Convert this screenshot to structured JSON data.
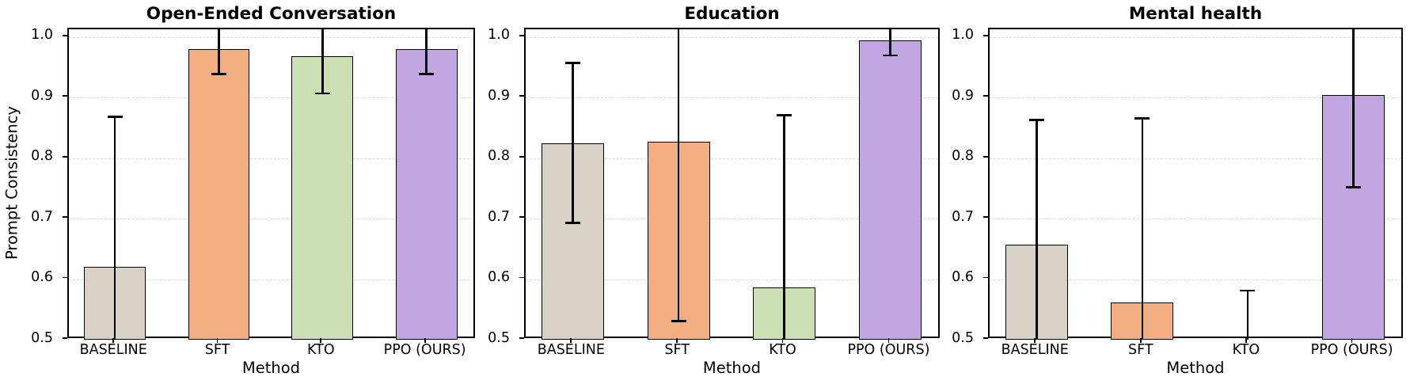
{
  "figure": {
    "ylabel": "Prompt Consistency",
    "background": "#ffffff"
  },
  "style": {
    "bar_colors": [
      "#D8D1C5",
      "#F2AE80",
      "#CBDFB2",
      "#C1A6E2"
    ],
    "bar_edge_color": "#000000",
    "error_color": "#000000",
    "grid_color": "#d8d8d8",
    "frame_color": "#000000",
    "text_color": "#000000"
  },
  "chart_data": [
    {
      "type": "bar",
      "title": "Open-Ended Conversation",
      "xlabel": "Method",
      "ylabel": "Prompt Consistency",
      "categories": [
        "BASELINE",
        "SFT",
        "KTO",
        "PPO (OURS)"
      ],
      "values": [
        0.62,
        0.98,
        0.968,
        0.98
      ],
      "error_high": [
        0.868,
        null,
        null,
        null
      ],
      "error_low": [
        null,
        0.939,
        0.907,
        0.939
      ],
      "error_note": "null means whisker clipped at axis limit",
      "ylim": [
        0.5,
        1.013
      ],
      "yticks": [
        0.5,
        0.6,
        0.7,
        0.8,
        0.9,
        1.0
      ],
      "grid": true,
      "legend": "none"
    },
    {
      "type": "bar",
      "title": "Education",
      "xlabel": "Method",
      "ylabel": "",
      "categories": [
        "BASELINE",
        "SFT",
        "KTO",
        "PPO (OURS)"
      ],
      "values": [
        0.824,
        0.827,
        0.586,
        0.995
      ],
      "error_high": [
        0.957,
        null,
        0.871,
        null
      ],
      "error_low": [
        0.693,
        0.531,
        null,
        0.97
      ],
      "error_note": "null means whisker clipped at axis limit",
      "ylim": [
        0.5,
        1.013
      ],
      "yticks": [
        0.5,
        0.6,
        0.7,
        0.8,
        0.9,
        1.0
      ],
      "grid": true,
      "legend": "none"
    },
    {
      "type": "bar",
      "title": "Mental health",
      "xlabel": "Method",
      "ylabel": "",
      "categories": [
        "BASELINE",
        "SFT",
        "KTO",
        "PPO (OURS)"
      ],
      "values": [
        0.657,
        0.562,
        null,
        0.904
      ],
      "error_high": [
        0.863,
        0.866,
        0.581,
        null
      ],
      "error_low": [
        null,
        null,
        null,
        0.752
      ],
      "error_note": "null value/whisker means below or beyond visible axis range",
      "ylim": [
        0.5,
        1.013
      ],
      "yticks": [
        0.5,
        0.6,
        0.7,
        0.8,
        0.9,
        1.0
      ],
      "grid": true,
      "legend": "none"
    }
  ]
}
